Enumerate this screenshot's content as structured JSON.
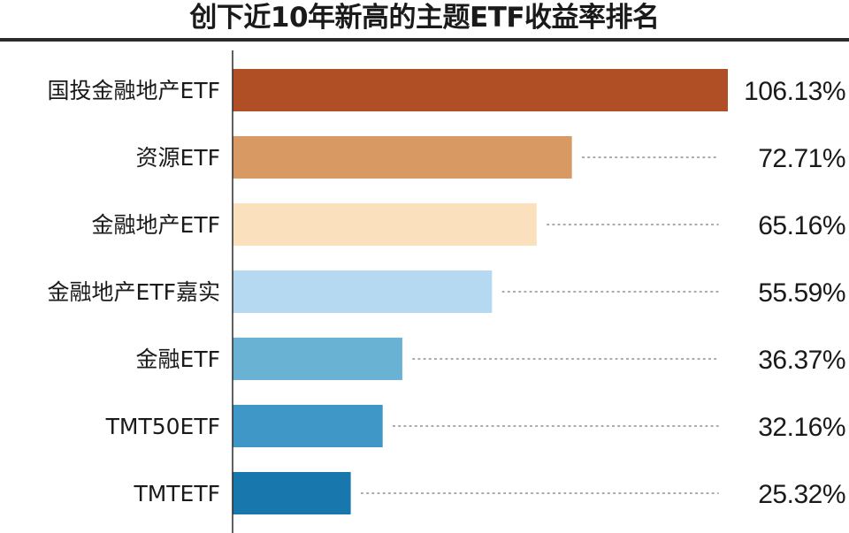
{
  "chart_data": {
    "type": "bar",
    "orientation": "horizontal",
    "title": "创下近10年新高的主题ETF收益率排名",
    "categories": [
      "国投金融地产ETF",
      "资源ETF",
      "金融地产ETF",
      "金融地产ETF嘉实",
      "金融ETF",
      "TMT50ETF",
      "TMTETF"
    ],
    "values": [
      106.13,
      72.71,
      65.16,
      55.59,
      36.37,
      32.16,
      25.32
    ],
    "value_labels": [
      "106.13%",
      "72.71%",
      "65.16%",
      "55.59%",
      "36.37%",
      "32.16%",
      "25.32%"
    ],
    "colors": [
      "#b04e26",
      "#d89a62",
      "#fbe0bd",
      "#b5d9f1",
      "#69b2d4",
      "#3e97c7",
      "#1877ad"
    ],
    "xlim": [
      0,
      106.13
    ],
    "grid": false,
    "legend": "none"
  }
}
